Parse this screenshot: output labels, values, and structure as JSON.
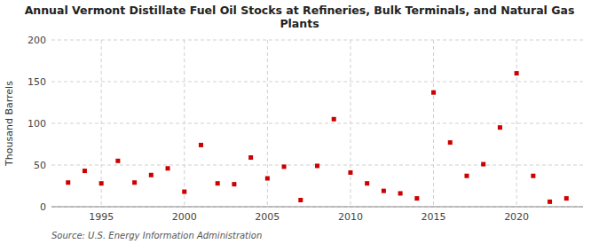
{
  "chart_data": {
    "type": "scatter",
    "title": "Annual Vermont Distillate Fuel Oil Stocks at Refineries, Bulk Terminals, and Natural Gas Plants",
    "ylabel": "Thousand Barrels",
    "source": "Source: U.S. Energy Information Administration",
    "x": [
      1993,
      1994,
      1995,
      1996,
      1997,
      1998,
      1999,
      2000,
      2001,
      2002,
      2003,
      2004,
      2005,
      2006,
      2007,
      2008,
      2009,
      2010,
      2011,
      2012,
      2013,
      2014,
      2015,
      2016,
      2017,
      2018,
      2019,
      2020,
      2021,
      2022,
      2023
    ],
    "values": [
      29,
      43,
      28,
      55,
      29,
      38,
      46,
      18,
      74,
      28,
      27,
      59,
      34,
      48,
      8,
      49,
      105,
      41,
      28,
      19,
      16,
      10,
      137,
      77,
      37,
      51,
      95,
      160,
      37,
      6,
      10
    ],
    "color": "#cc0000",
    "marker": "square",
    "xlim": [
      1992,
      2024
    ],
    "xticks": [
      1995,
      2000,
      2005,
      2010,
      2015,
      2020
    ],
    "ylim": [
      0,
      200
    ],
    "yticks": [
      0,
      50,
      100,
      150,
      200
    ],
    "grid": true
  }
}
